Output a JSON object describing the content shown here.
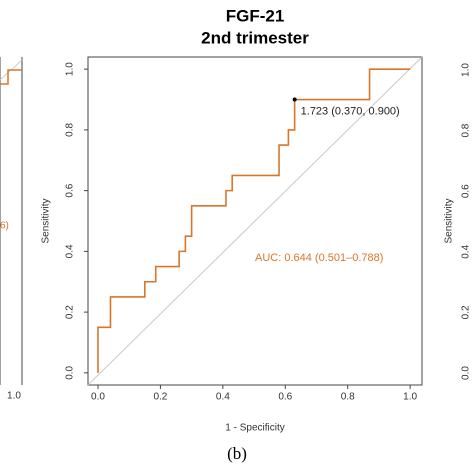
{
  "chart_data": {
    "type": "line",
    "title": "FGF-21",
    "subtitle": "2nd trimester",
    "xlabel": "1 - Specificity",
    "ylabel": "Sensitivity",
    "caption": "(b)",
    "xlim": [
      -0.032,
      1.038
    ],
    "ylim": [
      -0.04,
      1.04
    ],
    "xticks": [
      {
        "value": 0,
        "label": "0.0"
      },
      0.2,
      0.4,
      0.6,
      0.8,
      {
        "value": 1,
        "label": "1.0"
      }
    ],
    "yticks": [
      {
        "value": 0,
        "label": "0.0"
      },
      0.2,
      0.4,
      0.6,
      0.8,
      {
        "value": 1,
        "label": "1.0"
      }
    ],
    "series": [
      {
        "color": "#d9762a",
        "x": [
          0,
          0,
          0.04,
          0.04,
          0.15,
          0.15,
          0.185,
          0.185,
          0.26,
          0.26,
          0.28,
          0.28,
          0.3,
          0.3,
          0.41,
          0.41,
          0.43,
          0.43,
          0.58,
          0.58,
          0.61,
          0.61,
          0.63,
          0.63,
          0.87,
          0.87,
          1
        ],
        "values": [
          0,
          0.15,
          0.15,
          0.25,
          0.25,
          0.3,
          0.3,
          0.35,
          0.35,
          0.4,
          0.4,
          0.45,
          0.45,
          0.55,
          0.55,
          0.6,
          0.6,
          0.65,
          0.65,
          0.75,
          0.75,
          0.8,
          0.8,
          0.9,
          0.9,
          1,
          1
        ]
      }
    ],
    "reference_line": {
      "color": "#c8c8c8"
    },
    "threshold": {
      "x": 0.63,
      "y": 0.9,
      "label": "1.723 (0.370, 0.900)",
      "color": "#000000"
    },
    "auc_label": {
      "text": "AUC: 0.644 (0.501–0.788)",
      "color": "#d9762a"
    },
    "left_fragment": {
      "annotation": "6)",
      "xtick": "1.0"
    },
    "right_fragment": {
      "yticks": [
        "1.0",
        "0.8",
        "0.6",
        "0.4",
        "0.2",
        "0.0"
      ],
      "ylabel": "Sensitivity"
    }
  }
}
